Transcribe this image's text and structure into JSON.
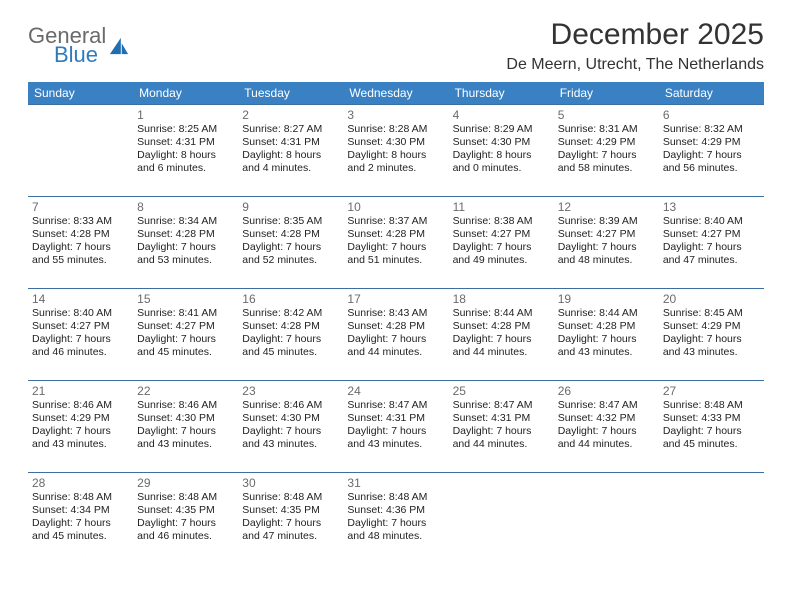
{
  "brand": {
    "word1": "General",
    "word2": "Blue",
    "logo_color": "#1f6fb0"
  },
  "title": "December 2025",
  "location": "De Meern, Utrecht, The Netherlands",
  "colors": {
    "header_bg": "#3a81c4",
    "header_text": "#ffffff",
    "row_border": "#3a6fa0",
    "daynum": "#6b6b6b",
    "body_text": "#222222",
    "title_text": "#333333"
  },
  "day_headers": [
    "Sunday",
    "Monday",
    "Tuesday",
    "Wednesday",
    "Thursday",
    "Friday",
    "Saturday"
  ],
  "weeks": [
    [
      {
        "n": "",
        "sr": "",
        "ss": "",
        "dl": ""
      },
      {
        "n": "1",
        "sr": "8:25 AM",
        "ss": "4:31 PM",
        "dl": "8 hours and 6 minutes."
      },
      {
        "n": "2",
        "sr": "8:27 AM",
        "ss": "4:31 PM",
        "dl": "8 hours and 4 minutes."
      },
      {
        "n": "3",
        "sr": "8:28 AM",
        "ss": "4:30 PM",
        "dl": "8 hours and 2 minutes."
      },
      {
        "n": "4",
        "sr": "8:29 AM",
        "ss": "4:30 PM",
        "dl": "8 hours and 0 minutes."
      },
      {
        "n": "5",
        "sr": "8:31 AM",
        "ss": "4:29 PM",
        "dl": "7 hours and 58 minutes."
      },
      {
        "n": "6",
        "sr": "8:32 AM",
        "ss": "4:29 PM",
        "dl": "7 hours and 56 minutes."
      }
    ],
    [
      {
        "n": "7",
        "sr": "8:33 AM",
        "ss": "4:28 PM",
        "dl": "7 hours and 55 minutes."
      },
      {
        "n": "8",
        "sr": "8:34 AM",
        "ss": "4:28 PM",
        "dl": "7 hours and 53 minutes."
      },
      {
        "n": "9",
        "sr": "8:35 AM",
        "ss": "4:28 PM",
        "dl": "7 hours and 52 minutes."
      },
      {
        "n": "10",
        "sr": "8:37 AM",
        "ss": "4:28 PM",
        "dl": "7 hours and 51 minutes."
      },
      {
        "n": "11",
        "sr": "8:38 AM",
        "ss": "4:27 PM",
        "dl": "7 hours and 49 minutes."
      },
      {
        "n": "12",
        "sr": "8:39 AM",
        "ss": "4:27 PM",
        "dl": "7 hours and 48 minutes."
      },
      {
        "n": "13",
        "sr": "8:40 AM",
        "ss": "4:27 PM",
        "dl": "7 hours and 47 minutes."
      }
    ],
    [
      {
        "n": "14",
        "sr": "8:40 AM",
        "ss": "4:27 PM",
        "dl": "7 hours and 46 minutes."
      },
      {
        "n": "15",
        "sr": "8:41 AM",
        "ss": "4:27 PM",
        "dl": "7 hours and 45 minutes."
      },
      {
        "n": "16",
        "sr": "8:42 AM",
        "ss": "4:28 PM",
        "dl": "7 hours and 45 minutes."
      },
      {
        "n": "17",
        "sr": "8:43 AM",
        "ss": "4:28 PM",
        "dl": "7 hours and 44 minutes."
      },
      {
        "n": "18",
        "sr": "8:44 AM",
        "ss": "4:28 PM",
        "dl": "7 hours and 44 minutes."
      },
      {
        "n": "19",
        "sr": "8:44 AM",
        "ss": "4:28 PM",
        "dl": "7 hours and 43 minutes."
      },
      {
        "n": "20",
        "sr": "8:45 AM",
        "ss": "4:29 PM",
        "dl": "7 hours and 43 minutes."
      }
    ],
    [
      {
        "n": "21",
        "sr": "8:46 AM",
        "ss": "4:29 PM",
        "dl": "7 hours and 43 minutes."
      },
      {
        "n": "22",
        "sr": "8:46 AM",
        "ss": "4:30 PM",
        "dl": "7 hours and 43 minutes."
      },
      {
        "n": "23",
        "sr": "8:46 AM",
        "ss": "4:30 PM",
        "dl": "7 hours and 43 minutes."
      },
      {
        "n": "24",
        "sr": "8:47 AM",
        "ss": "4:31 PM",
        "dl": "7 hours and 43 minutes."
      },
      {
        "n": "25",
        "sr": "8:47 AM",
        "ss": "4:31 PM",
        "dl": "7 hours and 44 minutes."
      },
      {
        "n": "26",
        "sr": "8:47 AM",
        "ss": "4:32 PM",
        "dl": "7 hours and 44 minutes."
      },
      {
        "n": "27",
        "sr": "8:48 AM",
        "ss": "4:33 PM",
        "dl": "7 hours and 45 minutes."
      }
    ],
    [
      {
        "n": "28",
        "sr": "8:48 AM",
        "ss": "4:34 PM",
        "dl": "7 hours and 45 minutes."
      },
      {
        "n": "29",
        "sr": "8:48 AM",
        "ss": "4:35 PM",
        "dl": "7 hours and 46 minutes."
      },
      {
        "n": "30",
        "sr": "8:48 AM",
        "ss": "4:35 PM",
        "dl": "7 hours and 47 minutes."
      },
      {
        "n": "31",
        "sr": "8:48 AM",
        "ss": "4:36 PM",
        "dl": "7 hours and 48 minutes."
      },
      {
        "n": "",
        "sr": "",
        "ss": "",
        "dl": ""
      },
      {
        "n": "",
        "sr": "",
        "ss": "",
        "dl": ""
      },
      {
        "n": "",
        "sr": "",
        "ss": "",
        "dl": ""
      }
    ]
  ],
  "labels": {
    "sunrise": "Sunrise: ",
    "sunset": "Sunset: ",
    "daylight": "Daylight: "
  }
}
